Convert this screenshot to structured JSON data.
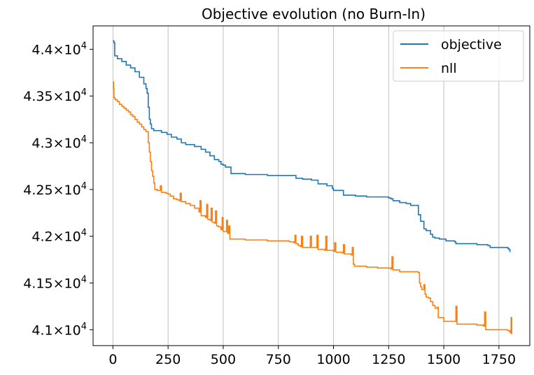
{
  "chart_data": {
    "type": "line",
    "title": "Objective evolution (no Burn-In)",
    "xlabel": "",
    "ylabel": "",
    "xlim": [
      -90,
      1890
    ],
    "ylim": [
      40830,
      44250
    ],
    "grid": "x-axis vertical lines",
    "legend_position": "top-right",
    "x_ticks": [
      0,
      250,
      500,
      750,
      1000,
      1250,
      1500,
      1750
    ],
    "y_ticks": [
      {
        "value": 41000,
        "mantissa": "4.1"
      },
      {
        "value": 41500,
        "mantissa": "4.15"
      },
      {
        "value": 42000,
        "mantissa": "4.2"
      },
      {
        "value": 42500,
        "mantissa": "4.25"
      },
      {
        "value": 43000,
        "mantissa": "4.3"
      },
      {
        "value": 43500,
        "mantissa": "4.35"
      },
      {
        "value": 44000,
        "mantissa": "4.4"
      }
    ],
    "y_tick_suffix": "×10",
    "y_tick_exponent": "4",
    "series": [
      {
        "name": "objective",
        "color": "#1f77b4",
        "points": [
          [
            0,
            44090
          ],
          [
            5,
            44070
          ],
          [
            8,
            43930
          ],
          [
            20,
            43900
          ],
          [
            40,
            43870
          ],
          [
            60,
            43830
          ],
          [
            80,
            43800
          ],
          [
            100,
            43760
          ],
          [
            120,
            43700
          ],
          [
            140,
            43630
          ],
          [
            150,
            43580
          ],
          [
            155,
            43530
          ],
          [
            160,
            43380
          ],
          [
            165,
            43250
          ],
          [
            170,
            43200
          ],
          [
            175,
            43150
          ],
          [
            185,
            43130
          ],
          [
            200,
            43130
          ],
          [
            220,
            43110
          ],
          [
            245,
            43090
          ],
          [
            265,
            43060
          ],
          [
            290,
            43040
          ],
          [
            310,
            43000
          ],
          [
            330,
            42980
          ],
          [
            370,
            42960
          ],
          [
            400,
            42930
          ],
          [
            420,
            42900
          ],
          [
            440,
            42860
          ],
          [
            460,
            42820
          ],
          [
            480,
            42800
          ],
          [
            490,
            42770
          ],
          [
            500,
            42760
          ],
          [
            510,
            42740
          ],
          [
            530,
            42740
          ],
          [
            535,
            42670
          ],
          [
            600,
            42660
          ],
          [
            700,
            42650
          ],
          [
            800,
            42650
          ],
          [
            830,
            42620
          ],
          [
            860,
            42610
          ],
          [
            900,
            42600
          ],
          [
            930,
            42560
          ],
          [
            970,
            42540
          ],
          [
            995,
            42510
          ],
          [
            1000,
            42490
          ],
          [
            1040,
            42490
          ],
          [
            1045,
            42440
          ],
          [
            1100,
            42430
          ],
          [
            1150,
            42420
          ],
          [
            1250,
            42410
          ],
          [
            1260,
            42400
          ],
          [
            1270,
            42380
          ],
          [
            1300,
            42360
          ],
          [
            1330,
            42350
          ],
          [
            1350,
            42330
          ],
          [
            1380,
            42330
          ],
          [
            1385,
            42230
          ],
          [
            1395,
            42160
          ],
          [
            1400,
            42160
          ],
          [
            1410,
            42080
          ],
          [
            1420,
            42060
          ],
          [
            1440,
            42020
          ],
          [
            1450,
            41990
          ],
          [
            1460,
            41980
          ],
          [
            1480,
            41970
          ],
          [
            1500,
            41970
          ],
          [
            1510,
            41950
          ],
          [
            1550,
            41940
          ],
          [
            1555,
            41920
          ],
          [
            1650,
            41910
          ],
          [
            1700,
            41900
          ],
          [
            1710,
            41880
          ],
          [
            1790,
            41870
          ],
          [
            1795,
            41860
          ],
          [
            1800,
            41830
          ]
        ]
      },
      {
        "name": "nll",
        "color": "#ff7f0e",
        "points": [
          [
            0,
            43650
          ],
          [
            3,
            43580
          ],
          [
            5,
            43480
          ],
          [
            10,
            43460
          ],
          [
            20,
            43440
          ],
          [
            30,
            43410
          ],
          [
            40,
            43390
          ],
          [
            50,
            43370
          ],
          [
            60,
            43350
          ],
          [
            70,
            43330
          ],
          [
            80,
            43300
          ],
          [
            90,
            43280
          ],
          [
            100,
            43250
          ],
          [
            110,
            43220
          ],
          [
            120,
            43200
          ],
          [
            130,
            43170
          ],
          [
            140,
            43140
          ],
          [
            150,
            43120
          ],
          [
            160,
            43000
          ],
          [
            165,
            42900
          ],
          [
            170,
            42800
          ],
          [
            175,
            42700
          ],
          [
            180,
            42640
          ],
          [
            185,
            42570
          ],
          [
            190,
            42500
          ],
          [
            200,
            42490
          ],
          [
            215,
            42540
          ],
          [
            220,
            42470
          ],
          [
            240,
            42460
          ],
          [
            250,
            42450
          ],
          [
            260,
            42430
          ],
          [
            275,
            42400
          ],
          [
            290,
            42390
          ],
          [
            300,
            42380
          ],
          [
            305,
            42460
          ],
          [
            310,
            42370
          ],
          [
            330,
            42350
          ],
          [
            350,
            42330
          ],
          [
            370,
            42300
          ],
          [
            390,
            42260
          ],
          [
            395,
            42380
          ],
          [
            400,
            42220
          ],
          [
            420,
            42200
          ],
          [
            425,
            42340
          ],
          [
            430,
            42180
          ],
          [
            440,
            42170
          ],
          [
            445,
            42300
          ],
          [
            450,
            42150
          ],
          [
            460,
            42140
          ],
          [
            465,
            42270
          ],
          [
            470,
            42110
          ],
          [
            480,
            42100
          ],
          [
            490,
            42070
          ],
          [
            495,
            42200
          ],
          [
            500,
            42050
          ],
          [
            510,
            42050
          ],
          [
            515,
            42170
          ],
          [
            520,
            42030
          ],
          [
            525,
            42110
          ],
          [
            530,
            41970
          ],
          [
            600,
            41960
          ],
          [
            700,
            41950
          ],
          [
            800,
            41940
          ],
          [
            820,
            41930
          ],
          [
            825,
            42010
          ],
          [
            830,
            41920
          ],
          [
            840,
            41900
          ],
          [
            850,
            41890
          ],
          [
            855,
            42000
          ],
          [
            860,
            41880
          ],
          [
            890,
            41880
          ],
          [
            895,
            42000
          ],
          [
            900,
            41880
          ],
          [
            920,
            41880
          ],
          [
            925,
            42010
          ],
          [
            930,
            41860
          ],
          [
            960,
            41850
          ],
          [
            965,
            42000
          ],
          [
            970,
            41850
          ],
          [
            1000,
            41840
          ],
          [
            1005,
            41930
          ],
          [
            1010,
            41830
          ],
          [
            1040,
            41820
          ],
          [
            1045,
            41910
          ],
          [
            1050,
            41810
          ],
          [
            1080,
            41800
          ],
          [
            1085,
            41880
          ],
          [
            1090,
            41700
          ],
          [
            1095,
            41680
          ],
          [
            1150,
            41670
          ],
          [
            1200,
            41660
          ],
          [
            1260,
            41650
          ],
          [
            1265,
            41780
          ],
          [
            1270,
            41640
          ],
          [
            1300,
            41620
          ],
          [
            1385,
            41610
          ],
          [
            1390,
            41500
          ],
          [
            1395,
            41460
          ],
          [
            1400,
            41430
          ],
          [
            1410,
            41480
          ],
          [
            1415,
            41380
          ],
          [
            1420,
            41350
          ],
          [
            1430,
            41340
          ],
          [
            1440,
            41300
          ],
          [
            1450,
            41260
          ],
          [
            1460,
            41230
          ],
          [
            1470,
            41240
          ],
          [
            1475,
            41130
          ],
          [
            1500,
            41090
          ],
          [
            1510,
            41090
          ],
          [
            1550,
            41090
          ],
          [
            1555,
            41250
          ],
          [
            1560,
            41060
          ],
          [
            1650,
            41050
          ],
          [
            1680,
            41040
          ],
          [
            1685,
            41190
          ],
          [
            1690,
            41000
          ],
          [
            1750,
            41000
          ],
          [
            1790,
            40990
          ],
          [
            1800,
            40970
          ],
          [
            1805,
            41130
          ],
          [
            1808,
            40950
          ]
        ]
      }
    ]
  }
}
